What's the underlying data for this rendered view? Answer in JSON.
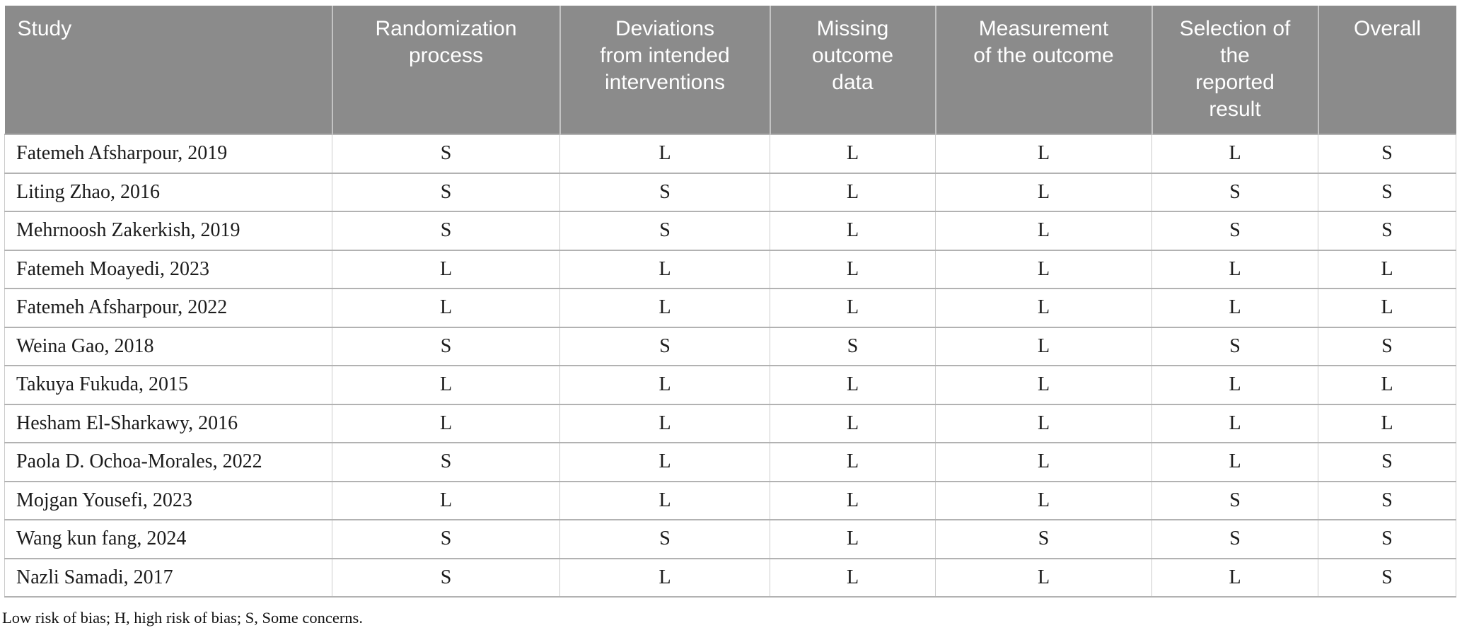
{
  "table": {
    "columns": [
      {
        "id": "study",
        "label": "Study"
      },
      {
        "id": "randomization-process",
        "label": "Randomization\nprocess"
      },
      {
        "id": "deviations",
        "label": "Deviations\nfrom intended\ninterventions"
      },
      {
        "id": "missing-outcome-data",
        "label": "Missing\noutcome\ndata"
      },
      {
        "id": "measurement-outcome",
        "label": "Measurement\nof the outcome"
      },
      {
        "id": "selection-result",
        "label": "Selection of\nthe\nreported\nresult"
      },
      {
        "id": "overall",
        "label": "Overall"
      }
    ],
    "rows": [
      {
        "study": "Fatemeh Afsharpour, 2019",
        "values": [
          "S",
          "L",
          "L",
          "L",
          "L",
          "S"
        ]
      },
      {
        "study": "Liting Zhao, 2016",
        "values": [
          "S",
          "S",
          "L",
          "L",
          "S",
          "S"
        ]
      },
      {
        "study": "Mehrnoosh Zakerkish, 2019",
        "values": [
          "S",
          "S",
          "L",
          "L",
          "S",
          "S"
        ]
      },
      {
        "study": "Fatemeh Moayedi, 2023",
        "values": [
          "L",
          "L",
          "L",
          "L",
          "L",
          "L"
        ]
      },
      {
        "study": "Fatemeh Afsharpour, 2022",
        "values": [
          "L",
          "L",
          "L",
          "L",
          "L",
          "L"
        ]
      },
      {
        "study": "Weina Gao, 2018",
        "values": [
          "S",
          "S",
          "S",
          "L",
          "S",
          "S"
        ]
      },
      {
        "study": "Takuya Fukuda, 2015",
        "values": [
          "L",
          "L",
          "L",
          "L",
          "L",
          "L"
        ]
      },
      {
        "study": "Hesham El-Sharkawy, 2016",
        "values": [
          "L",
          "L",
          "L",
          "L",
          "L",
          "L"
        ]
      },
      {
        "study": "Paola D. Ochoa-Morales, 2022",
        "values": [
          "S",
          "L",
          "L",
          "L",
          "L",
          "S"
        ]
      },
      {
        "study": "Mojgan Yousefi, 2023",
        "values": [
          "L",
          "L",
          "L",
          "L",
          "S",
          "S"
        ]
      },
      {
        "study": "Wang kun fang, 2024",
        "values": [
          "S",
          "S",
          "L",
          "S",
          "S",
          "S"
        ]
      },
      {
        "study": "Nazli Samadi, 2017",
        "values": [
          "S",
          "L",
          "L",
          "L",
          "L",
          "S"
        ]
      }
    ]
  },
  "footnote": "Low risk of bias; H, high risk of bias; S, Some concerns.",
  "colors": {
    "header_bg": "#8b8b8b",
    "header_text": "#ffffff",
    "body_text": "#1c1c1c",
    "row_border": "#b2b2b2",
    "col_border": "#cbcbcb"
  }
}
